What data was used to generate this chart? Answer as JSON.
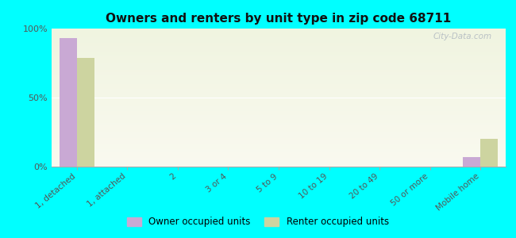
{
  "title": "Owners and renters by unit type in zip code 68711",
  "categories": [
    "1, detached",
    "1, attached",
    "2",
    "3 or 4",
    "5 to 9",
    "10 to 19",
    "20 to 49",
    "50 or more",
    "Mobile home"
  ],
  "owner_values": [
    93,
    0,
    0,
    0,
    0,
    0,
    0,
    0,
    7
  ],
  "renter_values": [
    79,
    0,
    0,
    0,
    0,
    0,
    0,
    0,
    20
  ],
  "owner_color": "#c9a9d4",
  "renter_color": "#cdd4a0",
  "background_color": "#00ffff",
  "plot_bg_colors": [
    "#f0f4e0",
    "#fafaf0"
  ],
  "ylim": [
    0,
    100
  ],
  "yticks": [
    0,
    50,
    100
  ],
  "ytick_labels": [
    "0%",
    "50%",
    "100%"
  ],
  "bar_width": 0.35,
  "legend_owner": "Owner occupied units",
  "legend_renter": "Renter occupied units",
  "watermark": "City-Data.com"
}
